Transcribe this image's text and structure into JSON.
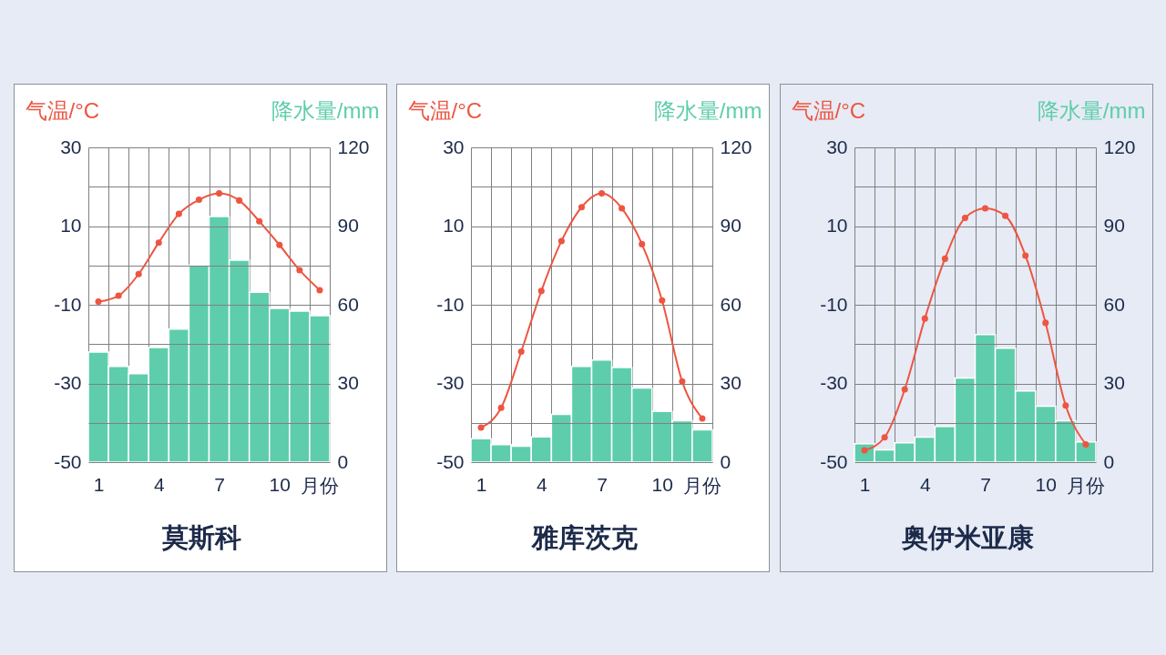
{
  "chart_data": [
    {
      "type": "bar",
      "title": "莫斯科",
      "xlabel": "月份",
      "ylabel": "气温/°C",
      "y2label": "降水量/mm",
      "categories": [
        "1",
        null,
        null,
        "4",
        null,
        null,
        "7",
        null,
        null,
        "10",
        null,
        null
      ],
      "series": [
        {
          "axis": "y2",
          "color": "#5ecdab",
          "values": [
            42,
            36.5,
            33.7,
            43.7,
            50.7,
            75.1,
            93.6,
            77,
            64.8,
            58.6,
            57.6,
            55.8
          ]
        },
        {
          "type": "line",
          "color": "#ee5541",
          "values": [
            -9.2,
            -7.7,
            -2.2,
            5.8,
            13.1,
            16.7,
            18.3,
            16.5,
            11.2,
            5.2,
            -1.2,
            -6.3
          ]
        }
      ],
      "ylim": [
        -50,
        30
      ],
      "yticks": [
        -50,
        {
          "value": -40,
          "label": null
        },
        -30,
        {
          "value": -20,
          "label": null
        },
        -10,
        {
          "value": 0,
          "label": null
        },
        10,
        {
          "value": 20,
          "label": null
        },
        30
      ],
      "y2lim": [
        0,
        120
      ],
      "y2ticks": [
        0,
        30,
        60,
        90,
        120
      ],
      "grid": true,
      "marker": "circle"
    },
    {
      "type": "bar",
      "title": "雅库茨克",
      "xlabel": "月份",
      "ylabel": "气温/°C",
      "y2label": "降水量/mm",
      "categories": [
        "1",
        null,
        null,
        "4",
        null,
        null,
        "7",
        null,
        null,
        "10",
        null,
        null
      ],
      "series": [
        {
          "axis": "y2",
          "color": "#5ecdab",
          "values": [
            8.9,
            6.7,
            6.1,
            9.6,
            18.2,
            36.5,
            38.9,
            36.1,
            28.3,
            19.3,
            15.8,
            12.3
          ]
        },
        {
          "type": "line",
          "color": "#ee5541",
          "values": [
            -41.2,
            -36.2,
            -21.9,
            -6.5,
            6.2,
            14.8,
            18.3,
            14.5,
            5.4,
            -8.9,
            -29.5,
            -38.9
          ]
        }
      ],
      "ylim": [
        -50,
        30
      ],
      "yticks": [
        -50,
        {
          "value": -40,
          "label": null
        },
        -30,
        {
          "value": -20,
          "label": null
        },
        -10,
        {
          "value": 0,
          "label": null
        },
        10,
        {
          "value": 20,
          "label": null
        },
        30
      ],
      "y2lim": [
        0,
        120
      ],
      "y2ticks": [
        0,
        30,
        60,
        90,
        120
      ],
      "grid": true,
      "marker": "circle"
    },
    {
      "type": "bar",
      "title": "奥伊米亚康",
      "xlabel": "月份",
      "ylabel": "气温/°C",
      "y2label": "降水量/mm",
      "categories": [
        "1",
        null,
        null,
        "4",
        null,
        null,
        "7",
        null,
        null,
        "10",
        null,
        null
      ],
      "series": [
        {
          "axis": "y2",
          "color": "#5ecdab",
          "values": [
            7,
            4.7,
            7.4,
            9.5,
            13.6,
            32.1,
            48.6,
            43.4,
            27.1,
            21.3,
            15.8,
            7.7
          ]
        },
        {
          "type": "line",
          "color": "#ee5541",
          "values": [
            -47,
            -43.7,
            -31.5,
            -13.5,
            1.7,
            12.1,
            14.5,
            12.6,
            2.5,
            -14.6,
            -35.6,
            -45.5
          ]
        }
      ],
      "ylim": [
        -50,
        30
      ],
      "yticks": [
        -50,
        {
          "value": -40,
          "label": null
        },
        -30,
        {
          "value": -20,
          "label": null
        },
        -10,
        {
          "value": 0,
          "label": null
        },
        10,
        {
          "value": 20,
          "label": null
        },
        30
      ],
      "y2lim": [
        0,
        120
      ],
      "y2ticks": [
        0,
        30,
        60,
        90,
        120
      ],
      "grid": true,
      "marker": "circle"
    }
  ]
}
